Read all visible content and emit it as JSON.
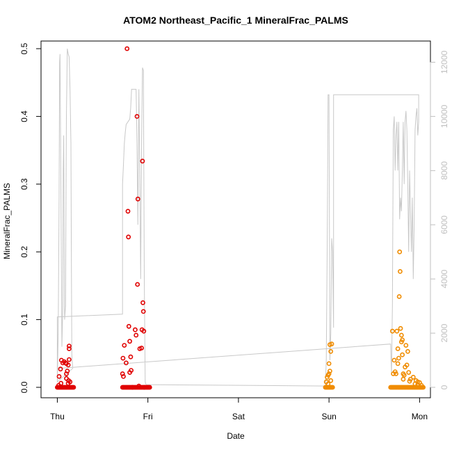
{
  "chart_data": {
    "type": "scatter",
    "title": "ATOM2 Northeast_Pacific_1 MineralFrac_PALMS",
    "xlabel": "Date",
    "ylabel": "MineralFrac_PALMS",
    "x_ticks": [
      "Thu",
      "Fri",
      "Sat",
      "Sun",
      "Mon"
    ],
    "xlim_days": [
      -0.18,
      4.12
    ],
    "ylim": [
      0,
      0.5
    ],
    "y_ticks": [
      "0.0",
      "0.1",
      "0.2",
      "0.3",
      "0.4",
      "0.5"
    ],
    "y2lim": [
      0,
      12500
    ],
    "y2_ticks": [
      "0",
      "2000",
      "4000",
      "6000",
      "8000",
      "10000",
      "12000"
    ],
    "grid": false,
    "colors": {
      "series_1": "#e00000",
      "series_2": "#f08c00",
      "altitude": "#c8c8c8"
    },
    "series": [
      {
        "color": "#e00000",
        "points": [
          [
            0.0,
            0.0
          ],
          [
            0.01,
            0.0
          ],
          [
            0.02,
            0.0
          ],
          [
            0.03,
            0.0
          ],
          [
            0.04,
            0.0
          ],
          [
            0.05,
            0.0
          ],
          [
            0.06,
            0.0
          ],
          [
            0.07,
            0.0
          ],
          [
            0.08,
            0.0
          ],
          [
            0.09,
            0.0
          ],
          [
            0.1,
            0.0
          ],
          [
            0.11,
            0.0
          ],
          [
            0.12,
            0.0
          ],
          [
            0.13,
            0.0
          ],
          [
            0.14,
            0.0
          ],
          [
            0.15,
            0.0
          ],
          [
            0.16,
            0.0
          ],
          [
            0.17,
            0.0
          ],
          [
            0.18,
            0.0
          ],
          [
            0.015,
            0.003
          ],
          [
            0.04,
            0.006
          ],
          [
            0.02,
            0.016
          ],
          [
            0.035,
            0.027
          ],
          [
            0.045,
            0.04
          ],
          [
            0.06,
            0.036
          ],
          [
            0.075,
            0.038
          ],
          [
            0.09,
            0.036
          ],
          [
            0.1,
            0.035
          ],
          [
            0.11,
            0.024
          ],
          [
            0.12,
            0.033
          ],
          [
            0.13,
            0.041
          ],
          [
            0.125,
            0.01
          ],
          [
            0.13,
            0.061
          ],
          [
            0.13,
            0.057
          ],
          [
            0.1,
            0.02
          ],
          [
            0.12,
            0.006
          ],
          [
            0.14,
            0.008
          ],
          [
            0.1,
            0.013
          ],
          [
            0.72,
            0.0
          ],
          [
            0.73,
            0.0
          ],
          [
            0.74,
            0.0
          ],
          [
            0.75,
            0.0
          ],
          [
            0.76,
            0.0
          ],
          [
            0.77,
            0.0
          ],
          [
            0.78,
            0.0
          ],
          [
            0.79,
            0.0
          ],
          [
            0.8,
            0.0
          ],
          [
            0.81,
            0.0
          ],
          [
            0.82,
            0.0
          ],
          [
            0.83,
            0.0
          ],
          [
            0.84,
            0.0
          ],
          [
            0.85,
            0.0
          ],
          [
            0.86,
            0.0
          ],
          [
            0.87,
            0.0
          ],
          [
            0.88,
            0.0
          ],
          [
            0.89,
            0.0
          ],
          [
            0.9,
            0.0
          ],
          [
            0.91,
            0.0
          ],
          [
            0.92,
            0.0
          ],
          [
            0.93,
            0.0
          ],
          [
            0.94,
            0.0
          ],
          [
            0.95,
            0.0
          ],
          [
            0.96,
            0.0
          ],
          [
            0.97,
            0.0
          ],
          [
            0.98,
            0.0
          ],
          [
            0.99,
            0.0
          ],
          [
            1.0,
            0.0
          ],
          [
            1.01,
            0.0
          ],
          [
            1.02,
            0.0
          ],
          [
            0.72,
            0.02
          ],
          [
            0.73,
            0.016
          ],
          [
            0.725,
            0.043
          ],
          [
            0.74,
            0.062
          ],
          [
            0.76,
            0.036
          ],
          [
            0.77,
            0.5
          ],
          [
            0.78,
            0.26
          ],
          [
            0.785,
            0.222
          ],
          [
            0.79,
            0.09
          ],
          [
            0.8,
            0.068
          ],
          [
            0.81,
            0.045
          ],
          [
            0.8,
            0.022
          ],
          [
            0.815,
            0.025
          ],
          [
            0.83,
            0.0
          ],
          [
            0.86,
            0.085
          ],
          [
            0.87,
            0.077
          ],
          [
            0.88,
            0.4
          ],
          [
            0.89,
            0.278
          ],
          [
            0.885,
            0.152
          ],
          [
            0.9,
            0.002
          ],
          [
            0.91,
            0.057
          ],
          [
            0.93,
            0.058
          ],
          [
            0.935,
            0.085
          ],
          [
            0.94,
            0.334
          ],
          [
            0.945,
            0.125
          ],
          [
            0.95,
            0.112
          ],
          [
            0.955,
            0.083
          ],
          [
            0.96,
            0.0
          ]
        ]
      },
      {
        "color": "#f08c00",
        "points": [
          [
            2.96,
            0.0
          ],
          [
            2.97,
            0.0
          ],
          [
            2.98,
            0.0
          ],
          [
            2.99,
            0.0
          ],
          [
            3.0,
            0.0
          ],
          [
            3.01,
            0.0
          ],
          [
            3.02,
            0.0
          ],
          [
            3.03,
            0.0
          ],
          [
            3.04,
            0.0
          ],
          [
            2.97,
            0.008
          ],
          [
            2.98,
            0.015
          ],
          [
            2.99,
            0.018
          ],
          [
            3.0,
            0.02
          ],
          [
            3.01,
            0.024
          ],
          [
            3.0,
            0.035
          ],
          [
            3.02,
            0.053
          ],
          [
            3.03,
            0.064
          ],
          [
            3.01,
            0.063
          ],
          [
            2.99,
            0.005
          ],
          [
            3.02,
            0.01
          ],
          [
            3.68,
            0.0
          ],
          [
            3.69,
            0.0
          ],
          [
            3.7,
            0.0
          ],
          [
            3.71,
            0.0
          ],
          [
            3.72,
            0.0
          ],
          [
            3.73,
            0.0
          ],
          [
            3.74,
            0.0
          ],
          [
            3.75,
            0.0
          ],
          [
            3.76,
            0.0
          ],
          [
            3.77,
            0.0
          ],
          [
            3.78,
            0.0
          ],
          [
            3.79,
            0.0
          ],
          [
            3.8,
            0.0
          ],
          [
            3.81,
            0.0
          ],
          [
            3.82,
            0.0
          ],
          [
            3.83,
            0.0
          ],
          [
            3.84,
            0.0
          ],
          [
            3.85,
            0.0
          ],
          [
            3.86,
            0.0
          ],
          [
            3.87,
            0.0
          ],
          [
            3.88,
            0.0
          ],
          [
            3.89,
            0.0
          ],
          [
            3.9,
            0.0
          ],
          [
            3.91,
            0.0
          ],
          [
            3.92,
            0.0
          ],
          [
            3.93,
            0.0
          ],
          [
            3.94,
            0.0
          ],
          [
            3.95,
            0.0
          ],
          [
            3.96,
            0.0
          ],
          [
            3.97,
            0.0
          ],
          [
            3.98,
            0.0
          ],
          [
            3.99,
            0.0
          ],
          [
            4.0,
            0.0
          ],
          [
            4.01,
            0.0
          ],
          [
            4.02,
            0.0
          ],
          [
            4.03,
            0.0
          ],
          [
            4.04,
            0.0
          ],
          [
            3.7,
            0.083
          ],
          [
            3.71,
            0.02
          ],
          [
            3.72,
            0.04
          ],
          [
            3.73,
            0.023
          ],
          [
            3.74,
            0.02
          ],
          [
            3.75,
            0.083
          ],
          [
            3.76,
            0.035
          ],
          [
            3.76,
            0.057
          ],
          [
            3.77,
            0.043
          ],
          [
            3.775,
            0.134
          ],
          [
            3.78,
            0.2
          ],
          [
            3.785,
            0.171
          ],
          [
            3.79,
            0.087
          ],
          [
            3.8,
            0.077
          ],
          [
            3.8,
            0.067
          ],
          [
            3.81,
            0.07
          ],
          [
            3.81,
            0.048
          ],
          [
            3.82,
            0.02
          ],
          [
            3.82,
            0.012
          ],
          [
            3.83,
            0.018
          ],
          [
            3.84,
            0.03
          ],
          [
            3.85,
            0.062
          ],
          [
            3.86,
            0.033
          ],
          [
            3.87,
            0.053
          ],
          [
            3.88,
            0.022
          ],
          [
            3.89,
            0.009
          ],
          [
            3.95,
            0.005
          ],
          [
            3.98,
            0.004
          ],
          [
            4.0,
            0.007
          ],
          [
            4.02,
            0.003
          ],
          [
            3.9,
            0.012
          ],
          [
            3.93,
            0.015
          ],
          [
            3.96,
            0.01
          ],
          [
            3.98,
            0.008
          ]
        ]
      }
    ],
    "altitude_series": {
      "color": "#c8c8c8",
      "points": [
        [
          0.0,
          200
        ],
        [
          0.01,
          2000
        ],
        [
          0.02,
          7000
        ],
        [
          0.025,
          12000
        ],
        [
          0.03,
          12300
        ],
        [
          0.04,
          7000
        ],
        [
          0.05,
          1500
        ],
        [
          0.06,
          3000
        ],
        [
          0.065,
          8000
        ],
        [
          0.07,
          9300
        ],
        [
          0.075,
          6000
        ],
        [
          0.08,
          2500
        ],
        [
          0.09,
          3000
        ],
        [
          0.1,
          10000
        ],
        [
          0.11,
          12500
        ],
        [
          0.12,
          12300
        ],
        [
          0.13,
          12200
        ],
        [
          0.14,
          11000
        ],
        [
          0.15,
          9000
        ],
        [
          0.155,
          5000
        ],
        [
          0.16,
          1200
        ],
        [
          0.17,
          700
        ],
        [
          0.0,
          200
        ],
        [
          0.0,
          2600
        ],
        [
          0.72,
          2700
        ],
        [
          0.72,
          7500
        ],
        [
          0.73,
          8200
        ],
        [
          0.74,
          9000
        ],
        [
          0.75,
          9400
        ],
        [
          0.76,
          9700
        ],
        [
          0.8,
          9900
        ],
        [
          0.81,
          10300
        ],
        [
          0.82,
          11000
        ],
        [
          0.87,
          11000
        ],
        [
          0.88,
          9000
        ],
        [
          0.89,
          6000
        ],
        [
          0.9,
          11000
        ],
        [
          0.91,
          8000
        ],
        [
          0.92,
          4000
        ],
        [
          0.93,
          9000
        ],
        [
          0.94,
          11800
        ],
        [
          0.95,
          11700
        ],
        [
          0.96,
          4000
        ],
        [
          0.97,
          200
        ],
        [
          0.98,
          100
        ],
        [
          2.96,
          50
        ],
        [
          2.97,
          1000
        ],
        [
          2.98,
          5000
        ],
        [
          2.99,
          10800
        ],
        [
          3.0,
          10800
        ],
        [
          3.01,
          1000
        ],
        [
          3.02,
          2000
        ],
        [
          3.03,
          5500
        ],
        [
          3.04,
          5000
        ],
        [
          3.05,
          2200
        ],
        [
          3.05,
          10800
        ],
        [
          3.99,
          10800
        ],
        [
          3.99,
          9800
        ],
        [
          3.98,
          9300
        ],
        [
          3.97,
          10300
        ],
        [
          3.96,
          10000
        ],
        [
          3.95,
          9500
        ],
        [
          3.94,
          6000
        ],
        [
          3.93,
          4000
        ],
        [
          3.92,
          7000
        ],
        [
          3.91,
          5000
        ],
        [
          3.9,
          6500
        ],
        [
          3.89,
          8000
        ],
        [
          3.88,
          5000
        ],
        [
          3.87,
          7500
        ],
        [
          3.86,
          9500
        ],
        [
          3.85,
          10200
        ],
        [
          3.84,
          9800
        ],
        [
          3.83,
          7500
        ],
        [
          3.82,
          9800
        ],
        [
          3.81,
          8000
        ],
        [
          3.8,
          6500
        ],
        [
          3.79,
          7000
        ],
        [
          3.78,
          6200
        ],
        [
          3.77,
          9800
        ],
        [
          3.76,
          8000
        ],
        [
          3.75,
          9800
        ],
        [
          3.74,
          9300
        ],
        [
          3.73,
          8000
        ],
        [
          3.72,
          10000
        ],
        [
          3.71,
          9500
        ],
        [
          3.7,
          3000
        ],
        [
          3.69,
          500
        ],
        [
          3.68,
          1600
        ],
        [
          0.02,
          700
        ]
      ]
    }
  }
}
